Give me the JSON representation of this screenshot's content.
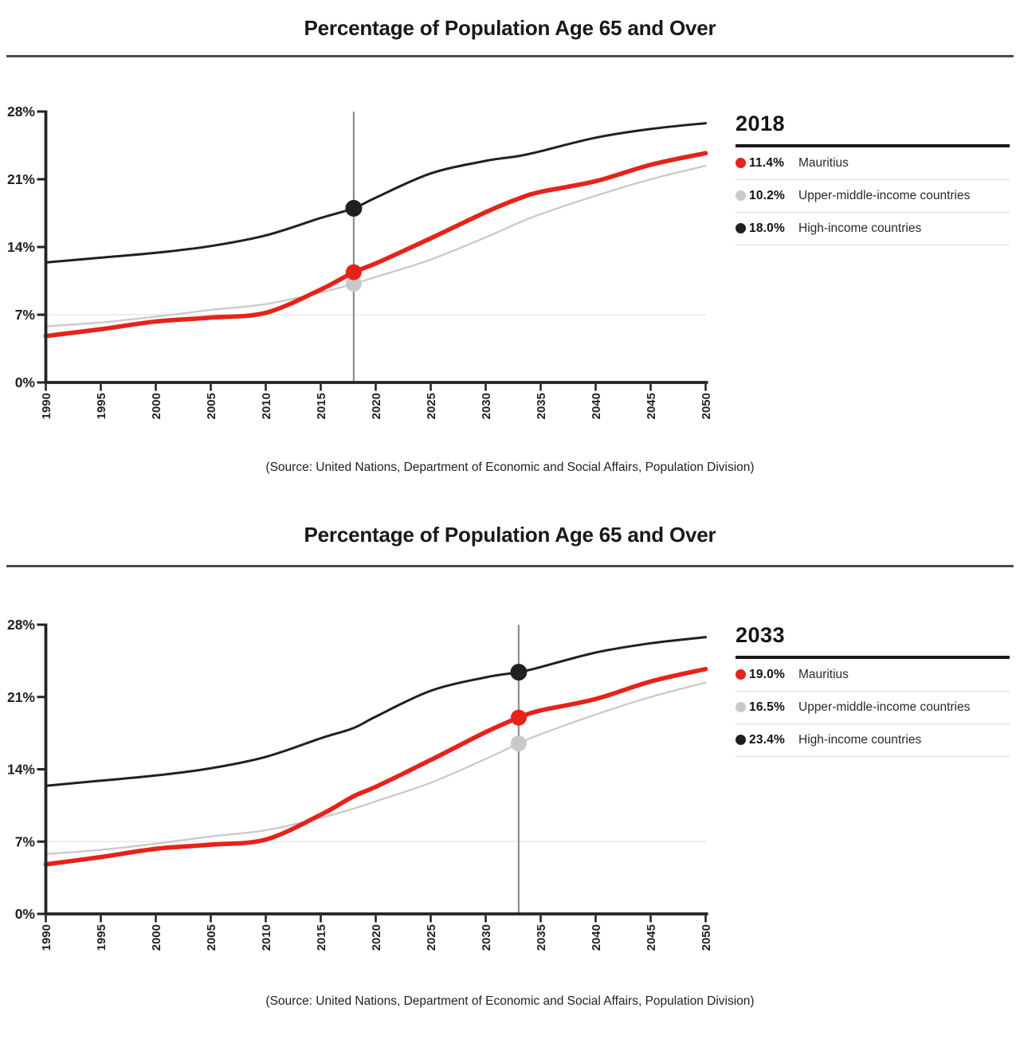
{
  "colors": {
    "mauritius": "#e62319",
    "upper_middle": "#c9c9c9",
    "high_income": "#231f20",
    "marker_line": "#8f8f8f",
    "axis": "#272324",
    "gridline": "#efedec",
    "title_rule": "#4b4b4b",
    "legend_rule": "#1a1617",
    "legend_separator": "#dadada"
  },
  "charts": [
    {
      "title": "Percentage of Population Age 65 and Over",
      "legend_title": "2018",
      "marker_year": 2018,
      "legend": [
        {
          "value": "11.4%",
          "label": "Mauritius",
          "series": "mauritius"
        },
        {
          "value": "10.2%",
          "label": "Upper-middle-income countries",
          "series": "upper_middle"
        },
        {
          "value": "18.0%",
          "label": "High-income countries",
          "series": "high_income"
        }
      ],
      "source": "(Source: United Nations, Department of Economic and Social Affairs, Population Division)"
    },
    {
      "title": "Percentage of Population Age 65 and Over",
      "legend_title": "2033",
      "marker_year": 2033,
      "legend": [
        {
          "value": "19.0%",
          "label": "Mauritius",
          "series": "mauritius"
        },
        {
          "value": "16.5%",
          "label": "Upper-middle-income countries",
          "series": "upper_middle"
        },
        {
          "value": "23.4%",
          "label": "High-income countries",
          "series": "high_income"
        }
      ],
      "source": "(Source: United Nations, Department of Economic and Social Affairs, Population Division)"
    }
  ],
  "chart_data": {
    "type": "line",
    "title": "Percentage of Population Age 65 and Over",
    "x": [
      1990,
      1995,
      2000,
      2005,
      2010,
      2015,
      2018,
      2020,
      2025,
      2030,
      2033,
      2035,
      2040,
      2045,
      2050
    ],
    "series": [
      {
        "name": "Mauritius",
        "key": "mauritius",
        "values": [
          4.8,
          5.5,
          6.3,
          6.7,
          7.2,
          9.6,
          11.4,
          12.3,
          14.9,
          17.6,
          19.0,
          19.7,
          20.8,
          22.5,
          23.7
        ]
      },
      {
        "name": "Upper-middle-income countries",
        "key": "upper_middle",
        "values": [
          5.8,
          6.2,
          6.8,
          7.5,
          8.1,
          9.3,
          10.2,
          10.9,
          12.7,
          15.0,
          16.5,
          17.4,
          19.3,
          21.0,
          22.4
        ]
      },
      {
        "name": "High-income countries",
        "key": "high_income",
        "values": [
          12.4,
          12.9,
          13.4,
          14.1,
          15.2,
          17.0,
          18.0,
          19.1,
          21.6,
          22.9,
          23.4,
          23.9,
          25.3,
          26.2,
          26.8
        ]
      }
    ],
    "ylim": [
      0,
      28
    ],
    "yticks": [
      {
        "value": 0,
        "label": "0%"
      },
      {
        "value": 7,
        "label": "7%"
      },
      {
        "value": 14,
        "label": "14%"
      },
      {
        "value": 21,
        "label": "21%"
      },
      {
        "value": 28,
        "label": "28%"
      }
    ],
    "xticks": [
      1990,
      1995,
      2000,
      2005,
      2010,
      2015,
      2020,
      2025,
      2030,
      2035,
      2040,
      2045,
      2050
    ],
    "gridlines": [
      7
    ],
    "legend_position": "right",
    "markers": [
      {
        "year": 2018,
        "values": {
          "mauritius": 11.4,
          "upper_middle": 10.2,
          "high_income": 18.0
        }
      },
      {
        "year": 2033,
        "values": {
          "mauritius": 19.0,
          "upper_middle": 16.5,
          "high_income": 23.4
        }
      }
    ]
  }
}
